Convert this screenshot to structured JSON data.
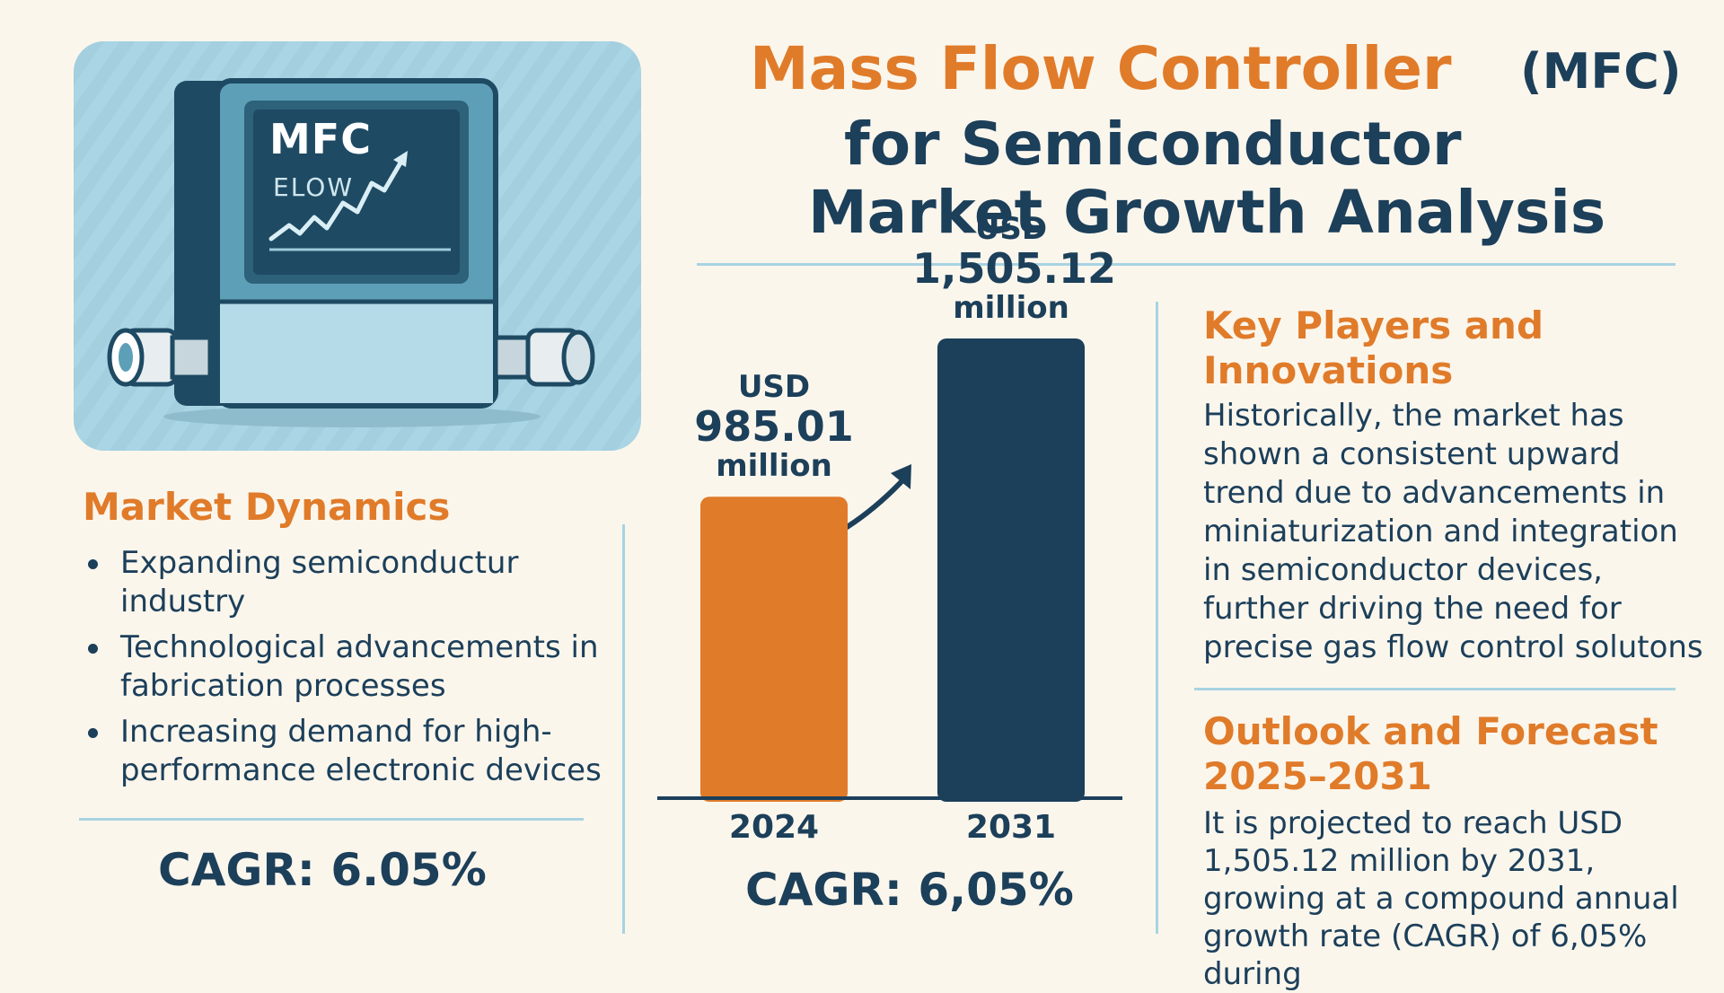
{
  "illustration": {
    "screen_title": "MFC",
    "screen_subtitle": "ELOW"
  },
  "title": {
    "line1_main": "Mass Flow Controller",
    "line1_abbr": "(MFC)",
    "line2": "for Semiconductor",
    "line3": "Market Growth Analysis"
  },
  "market_dynamics": {
    "heading": "Market Dynamics",
    "items": [
      "Expanding semiconductur industry",
      "Technological advancements in fabrication processes",
      "Increasing demand for high-performance electronic devices"
    ],
    "cagr": "CAGR: 6.05%"
  },
  "chart_data": {
    "type": "bar",
    "categories": [
      "2024",
      "2031"
    ],
    "values": [
      985.01,
      1505.12
    ],
    "value_labels": [
      {
        "prefix": "USD",
        "value": "985.01",
        "unit": "million"
      },
      {
        "prefix": "USD",
        "value": "1,505.12",
        "unit": "million"
      }
    ],
    "colors": [
      "#e07b2a",
      "#1c3f5a"
    ],
    "ylim": [
      0,
      1505.12
    ],
    "grid": false,
    "cagr_label": "CAGR: 6,05%"
  },
  "key_players": {
    "heading": "Key Players and Innovations",
    "text": "Historically, the market has shown a consistent upward trend due to advancements in miniaturization and integration in semiconductor devices, further driving the need for precise gas flow control solutons"
  },
  "outlook": {
    "heading": "Outlook and Forecast 2025–2031",
    "text": "It is projected to reach USD 1,505.12 million by 2031, growing at a compound annual growth rate (CAGR) of 6,05% during"
  }
}
